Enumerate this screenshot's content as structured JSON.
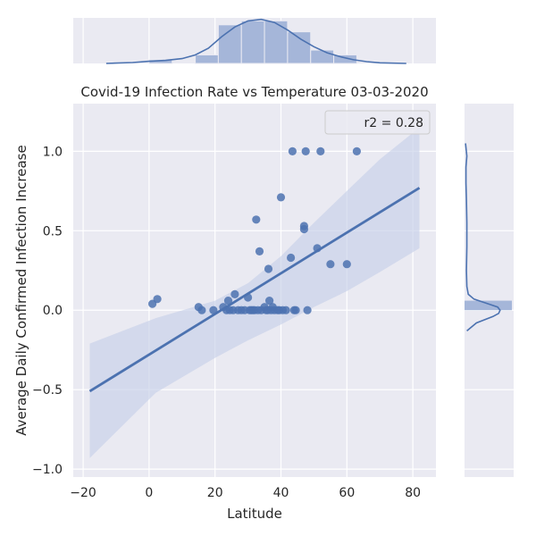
{
  "chart_data": {
    "type": "scatter",
    "title": "Covid-19 Infection Rate vs Temperature 03-03-2020",
    "xlabel": "Latitude",
    "ylabel": "Average Daily Confirmed Infection Increase",
    "xlim": [
      -23,
      87
    ],
    "ylim": [
      -1.05,
      1.3
    ],
    "xticks": [
      -20,
      0,
      20,
      40,
      60,
      80
    ],
    "xtick_labels": [
      "−20",
      "0",
      "20",
      "40",
      "60",
      "80"
    ],
    "yticks": [
      -1.0,
      -0.5,
      0.0,
      0.5,
      1.0
    ],
    "ytick_labels": [
      "−1.0",
      "−0.5",
      "0.0",
      "0.5",
      "1.0"
    ],
    "legend": {
      "label": "r2 = 0.28",
      "placement": "top-right"
    },
    "regression": {
      "x": [
        -18,
        82
      ],
      "y": [
        -0.51,
        0.77
      ]
    },
    "confidence_band": {
      "x": [
        -18,
        2,
        20,
        30,
        40,
        50,
        60,
        70,
        82
      ],
      "upper": [
        -0.21,
        -0.05,
        0.06,
        0.17,
        0.34,
        0.55,
        0.75,
        0.95,
        1.15
      ],
      "lower": [
        -0.93,
        -0.52,
        -0.3,
        -0.19,
        -0.09,
        0.02,
        0.12,
        0.24,
        0.39
      ]
    },
    "points": [
      {
        "x": 1,
        "y": 0.04
      },
      {
        "x": 2.5,
        "y": 0.07
      },
      {
        "x": 15,
        "y": 0.02
      },
      {
        "x": 16,
        "y": 0.0
      },
      {
        "x": 19.5,
        "y": 0.0
      },
      {
        "x": 22.5,
        "y": 0.02
      },
      {
        "x": 23.5,
        "y": 0.0
      },
      {
        "x": 24,
        "y": 0.06
      },
      {
        "x": 24.5,
        "y": 0.0
      },
      {
        "x": 25.5,
        "y": 0.0
      },
      {
        "x": 26,
        "y": 0.1
      },
      {
        "x": 27,
        "y": 0.0
      },
      {
        "x": 28,
        "y": 0.0
      },
      {
        "x": 29,
        "y": 0.0
      },
      {
        "x": 30,
        "y": 0.08
      },
      {
        "x": 30.5,
        "y": 0.0
      },
      {
        "x": 31,
        "y": 0.0
      },
      {
        "x": 31.5,
        "y": 0.0
      },
      {
        "x": 32,
        "y": 0.0
      },
      {
        "x": 32.5,
        "y": 0.57
      },
      {
        "x": 33,
        "y": 0.0
      },
      {
        "x": 33.5,
        "y": 0.37
      },
      {
        "x": 34,
        "y": 0.0
      },
      {
        "x": 35,
        "y": 0.02
      },
      {
        "x": 35.5,
        "y": 0.0
      },
      {
        "x": 36,
        "y": 0.0
      },
      {
        "x": 36.2,
        "y": 0.26
      },
      {
        "x": 36.5,
        "y": 0.06
      },
      {
        "x": 37,
        "y": 0.0
      },
      {
        "x": 37.5,
        "y": 0.02
      },
      {
        "x": 38,
        "y": 0.0
      },
      {
        "x": 39,
        "y": 0.0
      },
      {
        "x": 39.5,
        "y": 0.0
      },
      {
        "x": 40,
        "y": 0.71
      },
      {
        "x": 40.5,
        "y": 0.0
      },
      {
        "x": 41.5,
        "y": 0.0
      },
      {
        "x": 43,
        "y": 0.33
      },
      {
        "x": 43.5,
        "y": 1.0
      },
      {
        "x": 44,
        "y": 0.0
      },
      {
        "x": 44.5,
        "y": 0.0
      },
      {
        "x": 47,
        "y": 0.53
      },
      {
        "x": 47,
        "y": 0.51
      },
      {
        "x": 47.5,
        "y": 1.0
      },
      {
        "x": 48,
        "y": 0.0
      },
      {
        "x": 51,
        "y": 0.39
      },
      {
        "x": 52,
        "y": 1.0
      },
      {
        "x": 55,
        "y": 0.29
      },
      {
        "x": 60,
        "y": 0.29
      },
      {
        "x": 63,
        "y": 1.0
      }
    ],
    "top_marginal": {
      "hist": {
        "bins": [
          [
            0,
            7
          ],
          [
            14,
            21
          ],
          [
            21,
            28
          ],
          [
            28,
            35
          ],
          [
            35,
            42
          ],
          [
            42,
            49
          ],
          [
            49,
            56
          ],
          [
            56,
            63
          ]
        ],
        "density": [
          0.012,
          0.028,
          0.127,
          0.14,
          0.14,
          0.104,
          0.044,
          0.028
        ]
      },
      "kde": {
        "x": [
          -13,
          -5,
          0,
          5,
          10,
          14,
          18,
          22,
          26,
          30,
          34,
          38,
          42,
          46,
          50,
          54,
          58,
          62,
          66,
          70,
          78
        ],
        "density": [
          0.0,
          0.003,
          0.007,
          0.01,
          0.016,
          0.028,
          0.05,
          0.088,
          0.12,
          0.14,
          0.145,
          0.135,
          0.11,
          0.08,
          0.055,
          0.035,
          0.022,
          0.012,
          0.006,
          0.002,
          0.0
        ]
      }
    },
    "right_marginal": {
      "hist": {
        "bins": [
          [
            0.0,
            0.06
          ]
        ],
        "density": [
          1.0
        ]
      },
      "kde": {
        "y": [
          -0.13,
          -0.08,
          -0.04,
          -0.02,
          0.0,
          0.02,
          0.04,
          0.07,
          0.1,
          0.15,
          0.25,
          0.4,
          0.55,
          0.7,
          0.8,
          0.9,
          0.97,
          1.05
        ],
        "density": [
          0.05,
          0.25,
          0.6,
          0.72,
          0.75,
          0.7,
          0.5,
          0.2,
          0.08,
          0.05,
          0.04,
          0.05,
          0.05,
          0.04,
          0.03,
          0.03,
          0.05,
          0.02
        ]
      }
    },
    "colors": {
      "point": "#4c72b0",
      "line": "#4c72b0",
      "band": "#c6d0e8",
      "hist": "#a5b6d9",
      "axes_bg": "#eaeaf2",
      "grid": "#ffffff"
    },
    "grid": true
  }
}
